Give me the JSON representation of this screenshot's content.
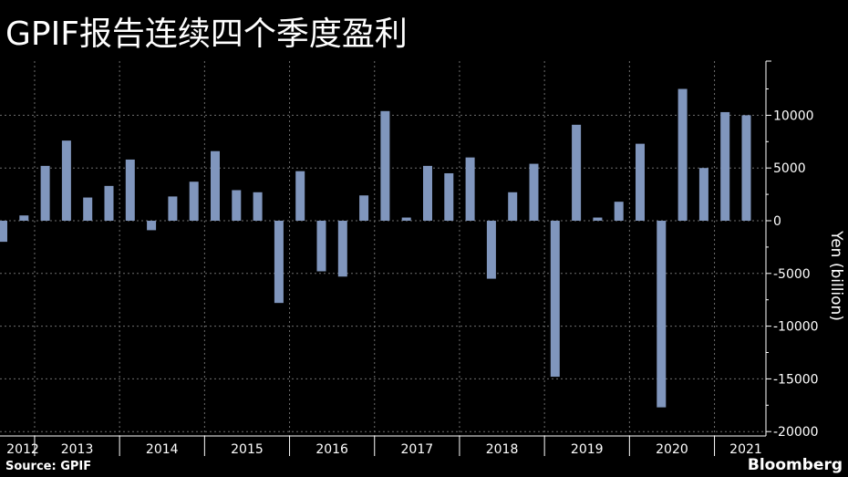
{
  "title": "GPIF报告连续四个季度盈利",
  "source": "Source: GPIF",
  "brand": "Bloomberg",
  "colors": {
    "background": "#000000",
    "bar": "#8096bd",
    "text": "#ffffff",
    "grid": "#6e6e6e"
  },
  "chart_data": {
    "type": "bar",
    "ylabel": "Yen (billion)",
    "ylim": [
      -20000,
      15000
    ],
    "yticks": [
      10000,
      5000,
      0,
      -5000,
      -10000,
      -15000,
      -20000
    ],
    "ytick_labels": [
      "10000",
      "5000",
      "0",
      "-5000",
      "-10000",
      "-15000",
      "-20000"
    ],
    "grid": true,
    "x_groups": [
      {
        "label": "2012",
        "quarters": [
          -2000,
          500
        ]
      },
      {
        "label": "2013",
        "quarters": [
          5200,
          7600,
          2200,
          3300
        ]
      },
      {
        "label": "2014",
        "quarters": [
          5800,
          -900,
          2300,
          3700
        ]
      },
      {
        "label": "2015",
        "quarters": [
          6600,
          2900,
          2700,
          -7800
        ]
      },
      {
        "label": "2016",
        "quarters": [
          4700,
          -4800,
          -5300,
          2400
        ]
      },
      {
        "label": "2017",
        "quarters": [
          10400,
          300,
          5200,
          4500
        ]
      },
      {
        "label": "2018",
        "quarters": [
          6000,
          -5500,
          2700,
          5400
        ]
      },
      {
        "label": "2019",
        "quarters": [
          -14800,
          9100,
          300,
          1800
        ]
      },
      {
        "label": "2020",
        "quarters": [
          7300,
          -17700,
          12500,
          5000
        ]
      },
      {
        "label": "2021",
        "quarters": [
          10300,
          10000
        ]
      }
    ]
  }
}
